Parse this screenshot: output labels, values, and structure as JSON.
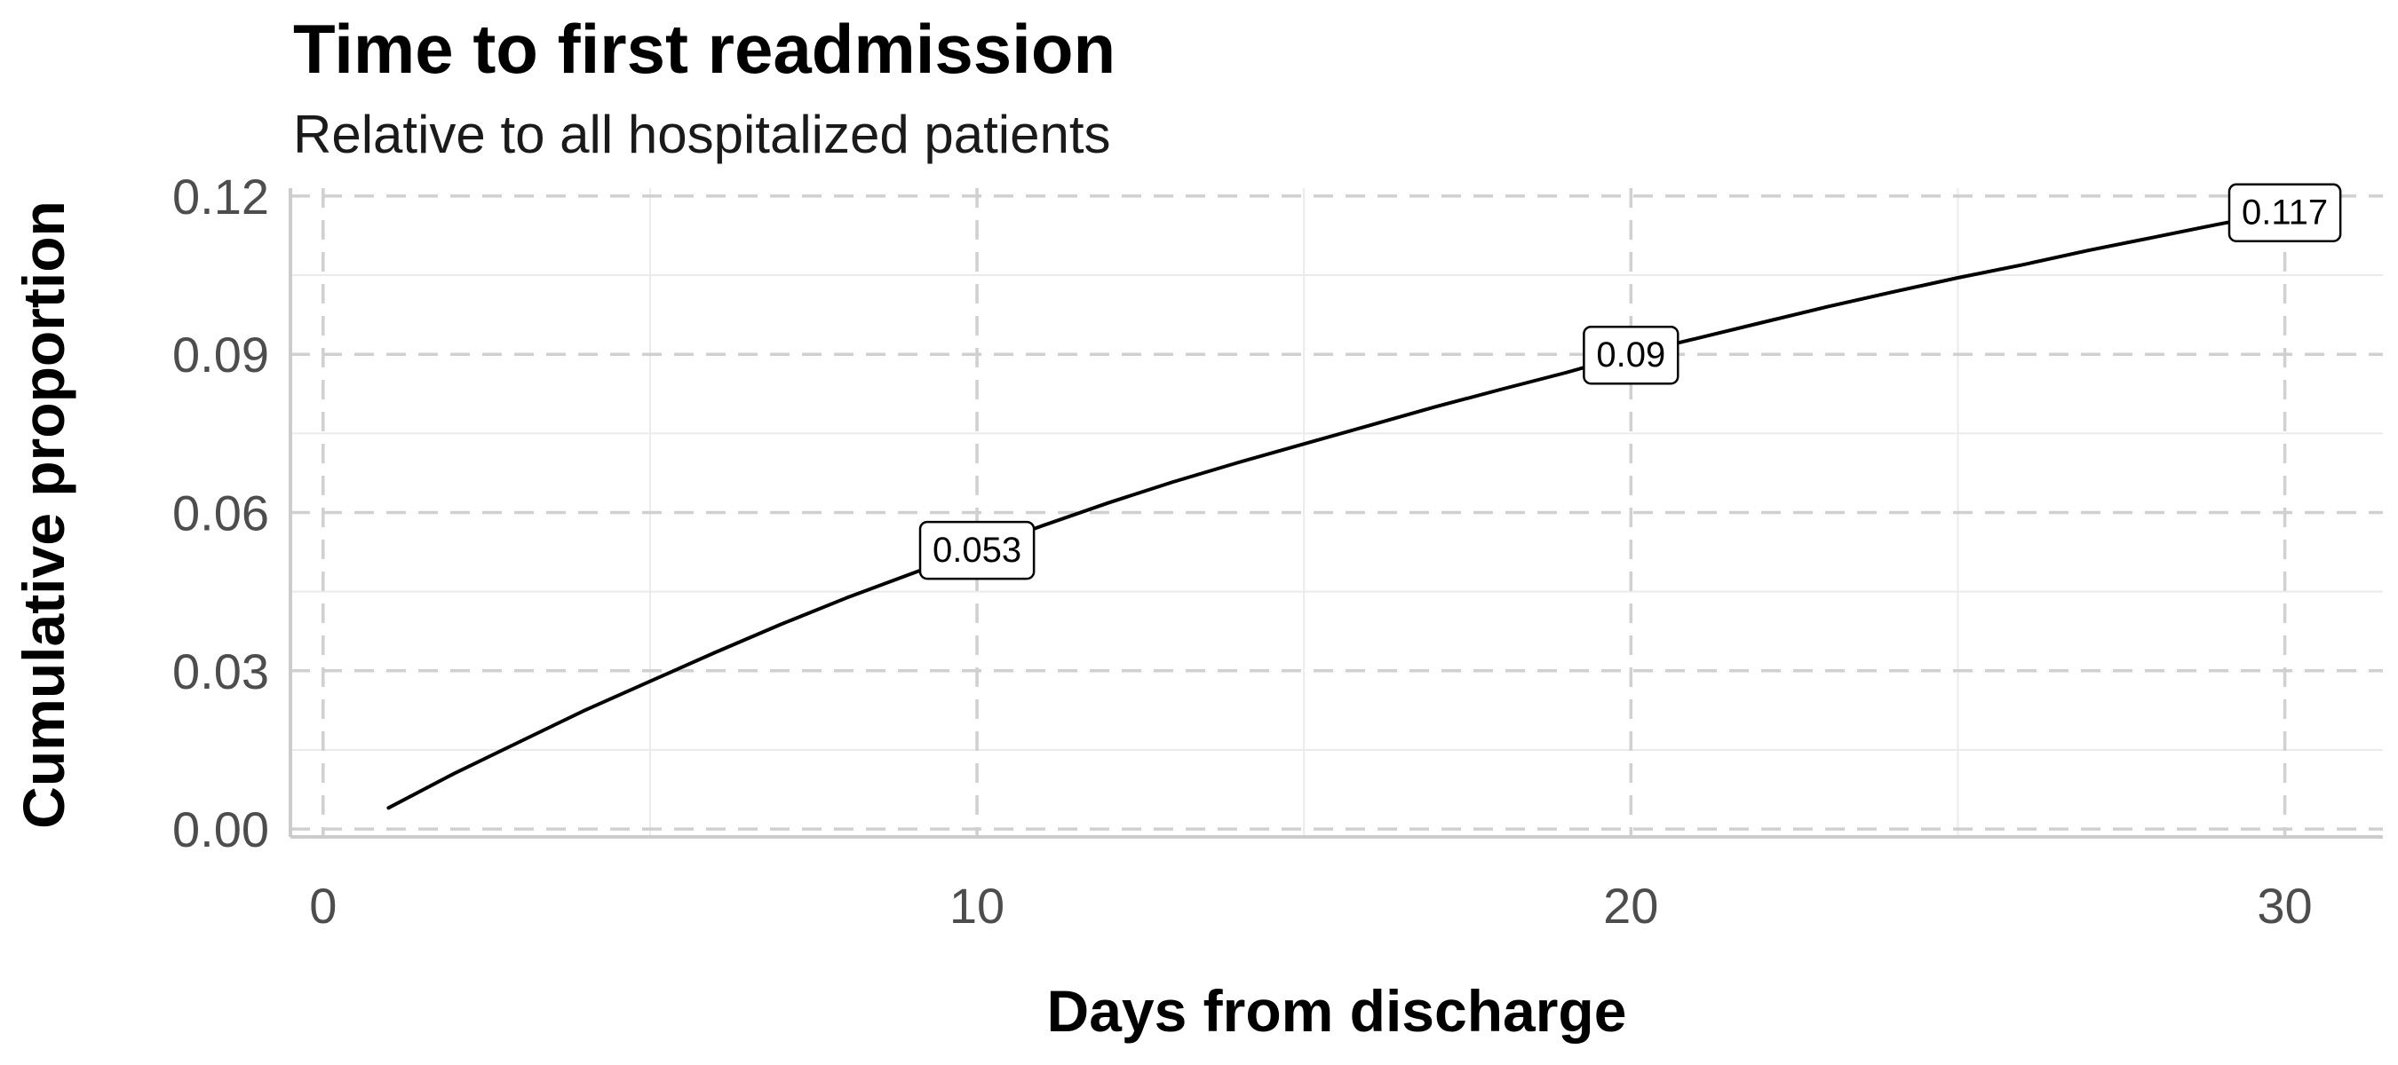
{
  "chart_data": {
    "type": "line",
    "title": "Time to first readmission",
    "subtitle": "Relative to all hospitalized patients",
    "xlabel": "Days from discharge",
    "ylabel": "Cumulative proportion",
    "xlim": [
      -0.5,
      31.5
    ],
    "ylim": [
      -0.0015,
      0.1215
    ],
    "x_ticks": [
      0,
      10,
      20,
      30
    ],
    "y_ticks": [
      0.0,
      0.03,
      0.06,
      0.09,
      0.12
    ],
    "x_tick_labels": [
      "0",
      "10",
      "20",
      "30"
    ],
    "y_tick_labels": [
      "0.00",
      "0.03",
      "0.06",
      "0.09",
      "0.12"
    ],
    "x_minor_ticks": [
      5,
      15,
      25
    ],
    "y_minor_ticks": [
      0.015,
      0.045,
      0.075,
      0.105
    ],
    "grid": true,
    "series": [
      {
        "x": [
          1,
          2,
          3,
          4,
          5,
          6,
          7,
          8,
          9,
          10,
          11,
          12,
          13,
          14,
          15,
          16,
          17,
          18,
          19,
          20,
          21,
          22,
          23,
          24,
          25,
          26,
          27,
          28,
          29,
          30
        ],
        "values": [
          0.004,
          0.0105,
          0.0165,
          0.0225,
          0.028,
          0.0335,
          0.0388,
          0.0438,
          0.0484,
          0.053,
          0.0575,
          0.0618,
          0.0658,
          0.0695,
          0.073,
          0.0765,
          0.08,
          0.0833,
          0.0865,
          0.09,
          0.093,
          0.096,
          0.099,
          0.1018,
          0.1045,
          0.107,
          0.1097,
          0.1122,
          0.1147,
          0.117
        ],
        "color": "#000000"
      }
    ],
    "annotations": [
      {
        "x": 10,
        "y": 0.053,
        "label": "0.053"
      },
      {
        "x": 20,
        "y": 0.09,
        "label": "0.09"
      },
      {
        "x": 30,
        "y": 0.117,
        "label": "0.117"
      }
    ],
    "colors": {
      "grid_major": "#d0d0d0",
      "grid_minor": "#ebebeb",
      "axis_line": "#cccccc",
      "line": "#000000"
    }
  }
}
